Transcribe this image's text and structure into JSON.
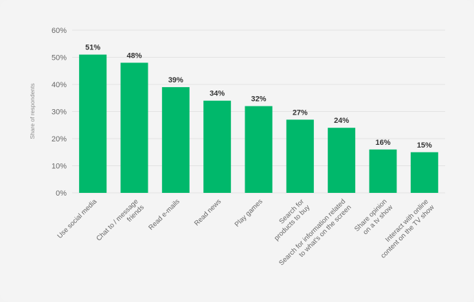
{
  "colors": {
    "bar": "#00b86b",
    "background": "#f4f4f4",
    "grid": "#e2e2e2"
  },
  "chart_data": {
    "type": "bar",
    "title": "",
    "xlabel": "",
    "ylabel": "Share of respondents",
    "ylim": [
      0,
      60
    ],
    "yticks": [
      "0%",
      "10%",
      "20%",
      "30%",
      "40%",
      "50%",
      "60%"
    ],
    "grid": true,
    "categories": [
      [
        "Use social media"
      ],
      [
        "Chat to / message",
        "friends"
      ],
      [
        "Read e-mails"
      ],
      [
        "Read news"
      ],
      [
        "Play games"
      ],
      [
        "Search for",
        "products to buy"
      ],
      [
        "Search for information related",
        "to what's on the screen"
      ],
      [
        "Share opinion",
        "on a tv show"
      ],
      [
        "Interact with online",
        "content on the TV show"
      ]
    ],
    "values": [
      51,
      48,
      39,
      34,
      32,
      27,
      24,
      16,
      15
    ],
    "value_labels": [
      "51%",
      "48%",
      "39%",
      "34%",
      "32%",
      "27%",
      "24%",
      "16%",
      "15%"
    ]
  }
}
